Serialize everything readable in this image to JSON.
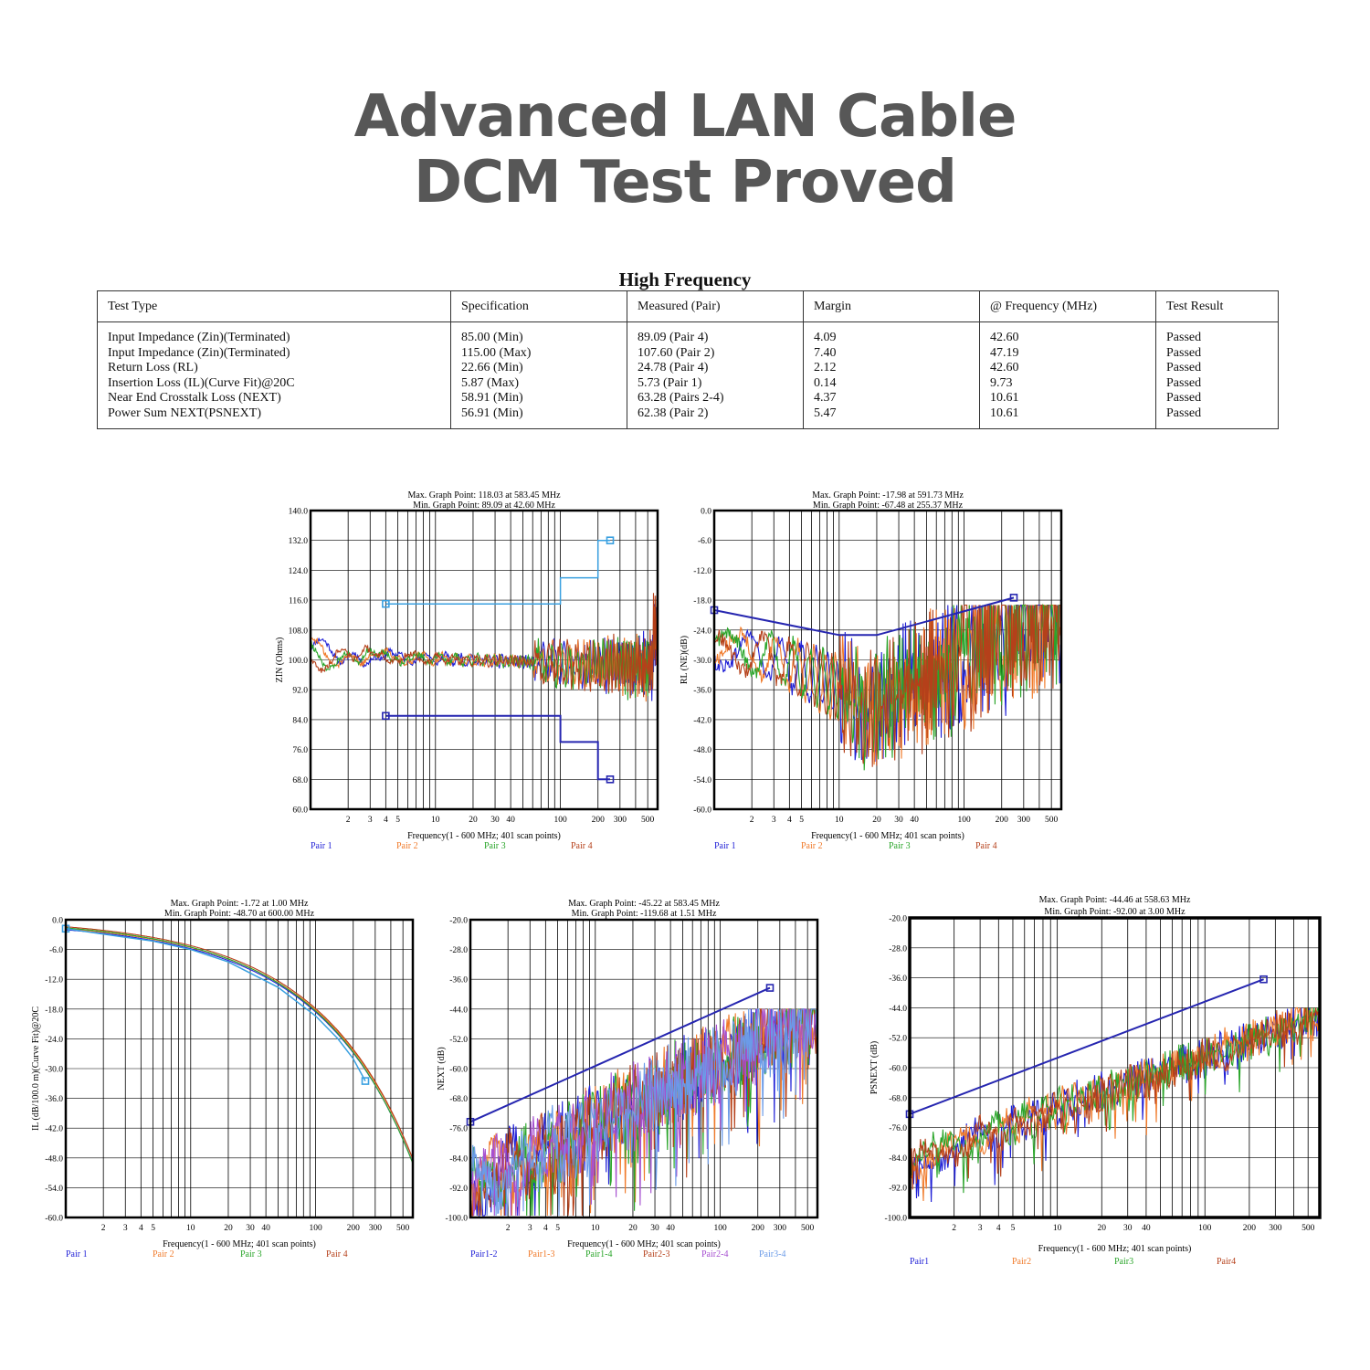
{
  "page": {
    "title_line1": "Advanced LAN Cable",
    "title_line2": "DCM Test Proved"
  },
  "table": {
    "title": "High Frequency",
    "headers": [
      "Test Type",
      "Specification",
      "Measured (Pair)",
      "Margin",
      "@ Frequency (MHz)",
      "Test Result"
    ],
    "rows": [
      [
        "Input Impedance (Zin)(Terminated)",
        "85.00 (Min)",
        "89.09 (Pair 4)",
        "4.09",
        "42.60",
        "Passed"
      ],
      [
        "Input Impedance (Zin)(Terminated)",
        "115.00 (Max)",
        "107.60 (Pair 2)",
        "7.40",
        "47.19",
        "Passed"
      ],
      [
        "Return Loss (RL)",
        "22.66 (Min)",
        "24.78 (Pair 4)",
        "2.12",
        "42.60",
        "Passed"
      ],
      [
        "Insertion Loss (IL)(Curve Fit)@20C",
        "5.87 (Max)",
        "5.73 (Pair 1)",
        "0.14",
        "9.73",
        "Passed"
      ],
      [
        "Near End Crosstalk Loss (NEXT)",
        "58.91 (Min)",
        "63.28 (Pairs 2-4)",
        "4.37",
        "10.61",
        "Passed"
      ],
      [
        "Power Sum NEXT(PSNEXT)",
        "56.91 (Min)",
        "62.38 (Pair 2)",
        "5.47",
        "10.61",
        "Passed"
      ]
    ]
  },
  "chart_data": [
    {
      "id": "zin",
      "type": "line",
      "max_point": "Max. Graph Point: 118.03 at 583.45 MHz",
      "min_point": "Min. Graph Point: 89.09 at 42.60 MHz",
      "xlabel": "Frequency(1 - 600 MHz; 401 scan points)",
      "ylabel": "ZIN (Ohms)",
      "x_scale": "log",
      "xlim": [
        1,
        600
      ],
      "ylim": [
        60,
        140
      ],
      "y_ticks": [
        "60.0",
        "68.0",
        "76.0",
        "84.0",
        "92.0",
        "100.0",
        "108.0",
        "116.0",
        "124.0",
        "132.0",
        "140.0"
      ],
      "x_ticks": [
        "2",
        "3",
        "4",
        "5",
        "10",
        "20",
        "30",
        "40",
        "100",
        "200",
        "300",
        "500"
      ],
      "colors": [
        "#1f1fd6",
        "#f07a2a",
        "#2aa52a",
        "#b5401a"
      ],
      "series": [
        {
          "name": "Pair 1",
          "color": "#1f1fd6",
          "base": "zin"
        },
        {
          "name": "Pair 2",
          "color": "#f07a2a",
          "base": "zin"
        },
        {
          "name": "Pair 3",
          "color": "#2aa52a",
          "base": "zin"
        },
        {
          "name": "Pair 4",
          "color": "#b5401a",
          "base": "zin"
        }
      ],
      "limits": [
        {
          "color": "#3aa0e0",
          "marker": true,
          "x": [
            4,
            100,
            100,
            200,
            200,
            250
          ],
          "y": [
            115,
            115,
            122,
            122,
            132,
            132
          ]
        },
        {
          "color": "#2626b0",
          "marker": true,
          "x": [
            4,
            100,
            100,
            200,
            200,
            250
          ],
          "y": [
            85,
            85,
            78,
            78,
            68,
            68
          ]
        }
      ]
    },
    {
      "id": "rl",
      "type": "line",
      "max_point": "Max. Graph Point: -17.98 at 591.73 MHz",
      "min_point": "Min. Graph Point: -67.48 at 255.37 MHz",
      "xlabel": "Frequency(1 - 600 MHz; 401 scan points)",
      "ylabel": "RL (NE)(dB)",
      "x_scale": "log",
      "xlim": [
        1,
        600
      ],
      "ylim": [
        -60,
        0
      ],
      "y_ticks": [
        "-60.0",
        "-54.0",
        "-48.0",
        "-42.0",
        "-36.0",
        "-30.0",
        "-24.0",
        "-18.0",
        "-12.0",
        "-6.0",
        "0.0"
      ],
      "x_ticks": [
        "2",
        "3",
        "4",
        "5",
        "10",
        "20",
        "30",
        "40",
        "100",
        "200",
        "300",
        "500"
      ],
      "series": [
        {
          "name": "Pair 1",
          "color": "#1f1fd6",
          "base": "rl"
        },
        {
          "name": "Pair 2",
          "color": "#f07a2a",
          "base": "rl"
        },
        {
          "name": "Pair 3",
          "color": "#2aa52a",
          "base": "rl"
        },
        {
          "name": "Pair 4",
          "color": "#b5401a",
          "base": "rl"
        }
      ],
      "limits": [
        {
          "color": "#2626b0",
          "marker": true,
          "x": [
            1,
            10,
            20,
            250
          ],
          "y": [
            -20,
            -25,
            -25,
            -17.5
          ]
        }
      ]
    },
    {
      "id": "il",
      "type": "line",
      "max_point": "Max. Graph Point: -1.72 at 1.00 MHz",
      "min_point": "Min. Graph Point: -48.70 at 600.00 MHz",
      "xlabel": "Frequency(1 - 600 MHz; 401 scan points)",
      "ylabel": "IL (dB/100.0 m)(Curve Fit)@20C",
      "x_scale": "log",
      "xlim": [
        1,
        600
      ],
      "ylim": [
        -60,
        0
      ],
      "y_ticks": [
        "-60.0",
        "-54.0",
        "-48.0",
        "-42.0",
        "-36.0",
        "-30.0",
        "-24.0",
        "-18.0",
        "-12.0",
        "-6.0",
        "0.0"
      ],
      "x_ticks": [
        "2",
        "3",
        "4",
        "5",
        "10",
        "20",
        "30",
        "40",
        "100",
        "200",
        "300",
        "500"
      ],
      "series": [
        {
          "name": "Pair 1",
          "color": "#1f1fd6",
          "base": "il"
        },
        {
          "name": "Pair 2",
          "color": "#f07a2a",
          "base": "il"
        },
        {
          "name": "Pair 3",
          "color": "#2aa52a",
          "base": "il"
        },
        {
          "name": "Pair 4",
          "color": "#b5401a",
          "base": "il"
        }
      ],
      "limits": [
        {
          "color": "#3aa0e0",
          "marker": true,
          "x": [
            1,
            2,
            5,
            10,
            20,
            50,
            100,
            150,
            200,
            250
          ],
          "y": [
            -1.8,
            -2.9,
            -4.3,
            -6.0,
            -8.5,
            -13.6,
            -19.4,
            -23.9,
            -28.0,
            -32.5
          ]
        }
      ]
    },
    {
      "id": "next",
      "type": "line",
      "max_point": "Max. Graph Point: -45.22 at 583.45 MHz",
      "min_point": "Min. Graph Point: -119.68 at 1.51 MHz",
      "xlabel": "Frequency(1 - 600 MHz; 401 scan points)",
      "ylabel": "NEXT (dB)",
      "x_scale": "log",
      "xlim": [
        1,
        600
      ],
      "ylim": [
        -100,
        -20
      ],
      "y_ticks": [
        "-100.0",
        "-92.0",
        "-84.0",
        "-76.0",
        "-68.0",
        "-60.0",
        "-52.0",
        "-44.0",
        "-36.0",
        "-28.0",
        "-20.0"
      ],
      "x_ticks": [
        "2",
        "3",
        "4",
        "5",
        "10",
        "20",
        "30",
        "40",
        "100",
        "200",
        "300",
        "500"
      ],
      "series": [
        {
          "name": "Pair1-2",
          "color": "#1f1fd6",
          "base": "next"
        },
        {
          "name": "Pair1-3",
          "color": "#f07a2a",
          "base": "next"
        },
        {
          "name": "Pair1-4",
          "color": "#2aa52a",
          "base": "next"
        },
        {
          "name": "Pair2-3",
          "color": "#b5401a",
          "base": "next"
        },
        {
          "name": "Pair2-4",
          "color": "#a64fd0",
          "base": "next"
        },
        {
          "name": "Pair3-4",
          "color": "#6b9be8",
          "base": "next"
        }
      ],
      "limits": [
        {
          "color": "#2626b0",
          "marker": true,
          "x": [
            1,
            250
          ],
          "y": [
            -74.3,
            -38.3
          ]
        }
      ]
    },
    {
      "id": "psnext",
      "type": "line",
      "max_point": "Max. Graph Point: -44.46 at 558.63 MHz",
      "min_point": "Min. Graph Point: -92.00 at 3.00 MHz",
      "xlabel": "Frequency(1 - 600 MHz; 401 scan points)",
      "ylabel": "PSNEXT (dB)",
      "x_scale": "log",
      "xlim": [
        1,
        600
      ],
      "ylim": [
        -100,
        -20
      ],
      "y_ticks": [
        "-100.0",
        "-92.0",
        "-84.0",
        "-76.0",
        "-68.0",
        "-60.0",
        "-52.0",
        "-44.0",
        "-36.0",
        "-28.0",
        "-20.0"
      ],
      "x_ticks": [
        "2",
        "3",
        "4",
        "5",
        "10",
        "20",
        "30",
        "40",
        "100",
        "200",
        "300",
        "500"
      ],
      "series": [
        {
          "name": "Pair1",
          "color": "#1f1fd6",
          "base": "psnext"
        },
        {
          "name": "Pair2",
          "color": "#f07a2a",
          "base": "psnext"
        },
        {
          "name": "Pair3",
          "color": "#2aa52a",
          "base": "psnext"
        },
        {
          "name": "Pair4",
          "color": "#b5401a",
          "base": "psnext"
        }
      ],
      "limits": [
        {
          "color": "#2626b0",
          "marker": true,
          "x": [
            1,
            250
          ],
          "y": [
            -72.4,
            -36.4
          ]
        }
      ]
    }
  ]
}
